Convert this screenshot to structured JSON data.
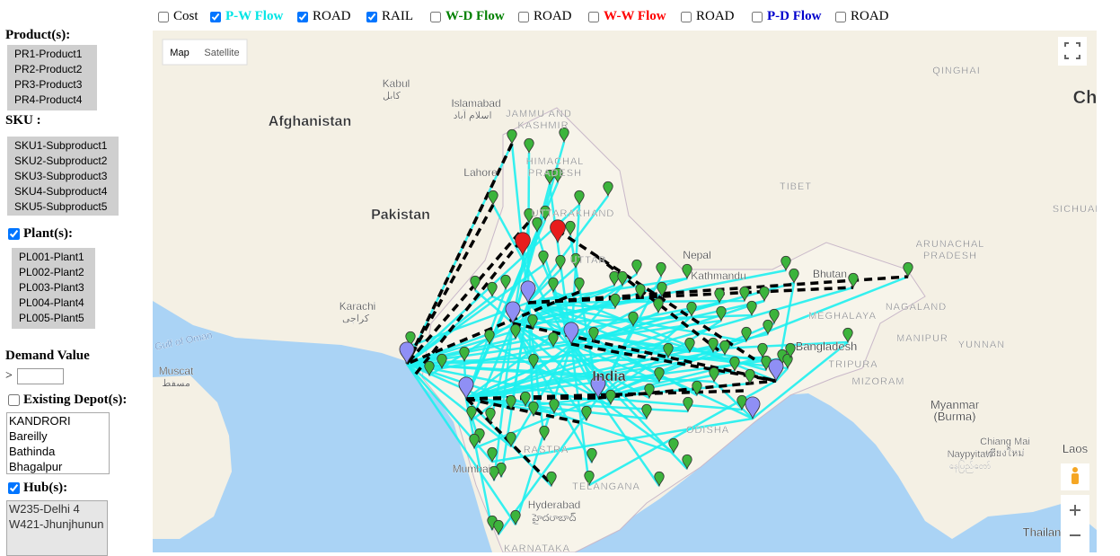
{
  "toolbar": {
    "items": [
      {
        "label": "Cost",
        "checked": false,
        "color": "#000000"
      },
      {
        "label": "P-W Flow",
        "checked": true,
        "color": "#00e5e5"
      },
      {
        "label": "ROAD",
        "checked": true,
        "color": "#000000"
      },
      {
        "label": "RAIL",
        "checked": true,
        "color": "#000000"
      },
      {
        "label": "W-D Flow",
        "checked": false,
        "color": "#008000"
      },
      {
        "label": "ROAD",
        "checked": false,
        "color": "#000000"
      },
      {
        "label": "W-W Flow",
        "checked": false,
        "color": "#ff0000"
      },
      {
        "label": "ROAD",
        "checked": false,
        "color": "#000000"
      },
      {
        "label": "P-D Flow",
        "checked": false,
        "color": "#0000cc"
      },
      {
        "label": "ROAD",
        "checked": false,
        "color": "#000000"
      }
    ]
  },
  "sidebar": {
    "products": {
      "heading": "Product(s):",
      "items": [
        "PR1-Product1",
        "PR2-Product2",
        "PR3-Product3",
        "PR4-Product4"
      ]
    },
    "skus": {
      "heading": "SKU :",
      "items": [
        "SKU1-Subproduct1",
        "SKU2-Subproduct2",
        "SKU3-Subproduct3",
        "SKU4-Subproduct4",
        "SKU5-Subproduct5"
      ]
    },
    "plants": {
      "heading": "Plant(s):",
      "checked": true,
      "items": [
        "PL001-Plant1",
        "PL002-Plant2",
        "PL003-Plant3",
        "PL004-Plant4",
        "PL005-Plant5"
      ]
    },
    "demand": {
      "heading": "Demand Value",
      "operator": ">"
    },
    "depots": {
      "heading": "Existing Depot(s):",
      "checked": false,
      "items": [
        "KANDRORI",
        "Bareilly",
        "Bathinda",
        "Bhagalpur"
      ]
    },
    "hubs": {
      "heading": "Hub(s):",
      "checked": true,
      "items": [
        "W235-Delhi 4",
        "W421-Jhunjhunun"
      ]
    }
  },
  "map": {
    "buttons": [
      "Map",
      "Satellite"
    ],
    "labels": [
      "Afghanistan",
      "Pakistan",
      "India",
      "Nepal",
      "Bhutan",
      "Bangladesh",
      "Myanmar",
      "(Burma)",
      "Laos",
      "Thailan",
      "Ch",
      "Kabul",
      "کابل",
      "Islamabad",
      "اسلام آباد",
      "Lahore",
      "Karachi",
      "کراچی",
      "Kathmandu",
      "Muscat",
      "مسقط",
      "Mumbai",
      "Hyderabad",
      "హైదరాబాద్",
      "Chiang Mai",
      "เชียงใหม่",
      "Naypyitaw",
      "နေပြည်တော်",
      "JAMMU AND",
      "KASHMIR",
      "HIMACHAL",
      "PRADESH",
      "UTTARAKHAND",
      "UTTAR",
      "TIBET",
      "QINGHAI",
      "SICHUAN",
      "ARUNACHAL",
      "PRADESH",
      "NAGALAND",
      "MEGHALAYA",
      "MANIPUR",
      "TRIPURA",
      "MIZORAM",
      "YUNNAN",
      "ODISHA",
      "TELANGANA",
      "KARNATAKA",
      "RASTRA",
      "Gulf of Oman"
    ]
  }
}
